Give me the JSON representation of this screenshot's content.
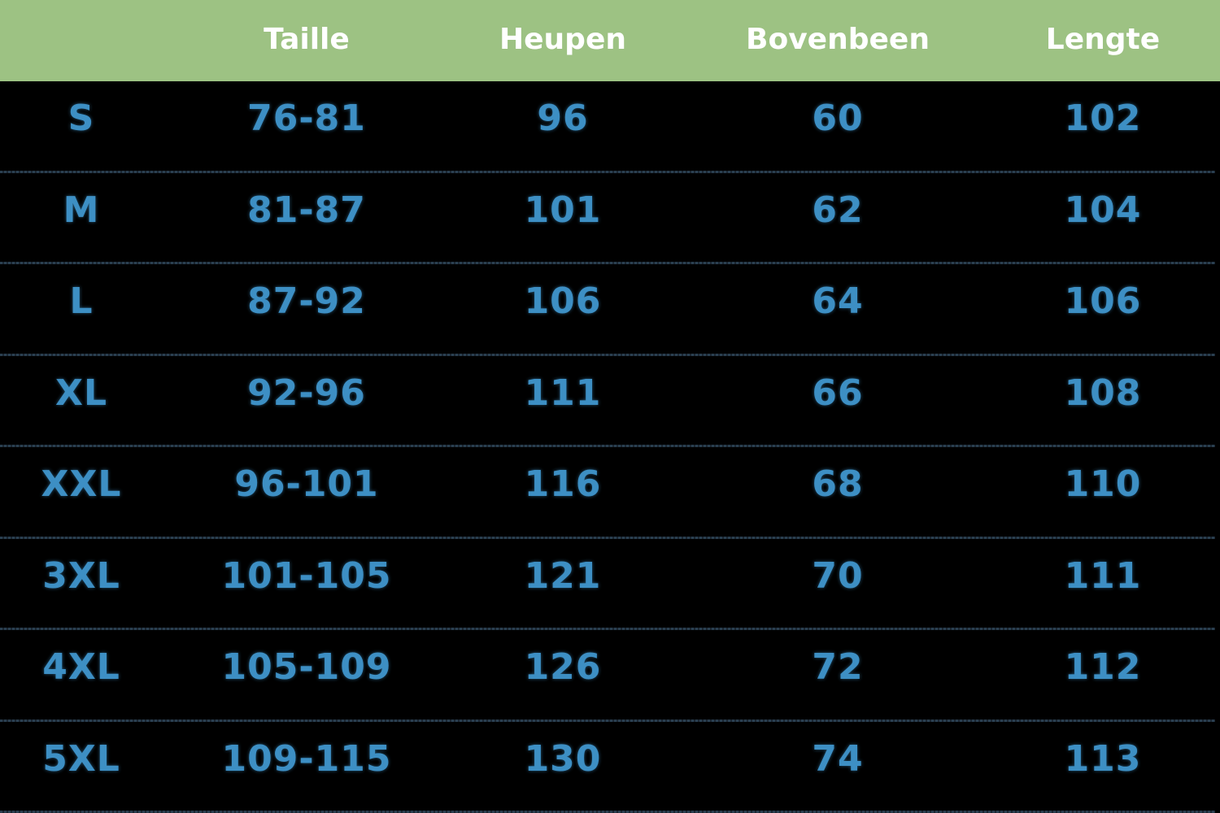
{
  "colors": {
    "header_bg": "#9dc283",
    "header_text": "#ffffff",
    "cell_text": "#3d8fc4",
    "background": "#000000"
  },
  "headers": [
    "",
    "Taille",
    "Heupen",
    "Bovenbeen",
    "Lengte"
  ],
  "rows": [
    [
      "S",
      "76-81",
      "96",
      "60",
      "102"
    ],
    [
      "M",
      "81-87",
      "101",
      "62",
      "104"
    ],
    [
      "L",
      "87-92",
      "106",
      "64",
      "106"
    ],
    [
      "XL",
      "92-96",
      "111",
      "66",
      "108"
    ],
    [
      "XXL",
      "96-101",
      "116",
      "68",
      "110"
    ],
    [
      "3XL",
      "101-105",
      "121",
      "70",
      "111"
    ],
    [
      "4XL",
      "105-109",
      "126",
      "72",
      "112"
    ],
    [
      "5XL",
      "109-115",
      "130",
      "74",
      "113"
    ]
  ]
}
